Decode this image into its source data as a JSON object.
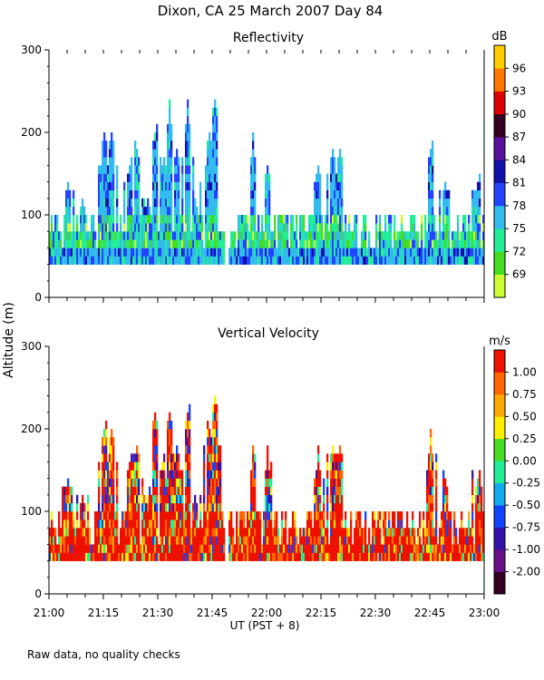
{
  "title": "Dixon, CA 25 March 2007  Day  84",
  "ylabel": "Altitude (m)",
  "xlabel": "UT  (PST + 8)",
  "footnote": "Raw data, no quality checks",
  "chart_data": [
    {
      "type": "heatmap",
      "title": "Reflectivity",
      "colorbar_unit": "dB",
      "colorbar_ticks": [
        "69",
        "72",
        "75",
        "78",
        "81",
        "84",
        "87",
        "90",
        "93",
        "96"
      ],
      "colors": [
        "#ccff33",
        "#44dd22",
        "#22ee99",
        "#33bbee",
        "#2244ff",
        "#1111aa",
        "#551199",
        "#330022",
        "#dd0000",
        "#ff7700",
        "#ffcc00"
      ],
      "ylim": [
        0,
        300
      ],
      "yticks": [
        "0",
        "100",
        "200",
        "300"
      ],
      "x_range_minutes": [
        0,
        120
      ],
      "data_floor_m": 40,
      "gap_minutes": [
        48.3,
        49.2
      ],
      "peaks": [
        [
          5,
          140
        ],
        [
          9,
          120
        ],
        [
          15,
          200
        ],
        [
          17,
          200
        ],
        [
          22,
          160
        ],
        [
          24,
          180
        ],
        [
          27,
          120
        ],
        [
          29,
          200
        ],
        [
          31,
          160
        ],
        [
          33,
          220
        ],
        [
          35,
          180
        ],
        [
          38,
          220
        ],
        [
          40,
          120
        ],
        [
          44,
          200
        ],
        [
          45.5,
          240
        ],
        [
          56,
          180
        ],
        [
          60,
          160
        ],
        [
          74,
          160
        ],
        [
          78,
          180
        ],
        [
          80,
          180
        ],
        [
          105,
          180
        ],
        [
          109,
          140
        ],
        [
          118,
          140
        ]
      ],
      "dominant": "mixed"
    },
    {
      "type": "heatmap",
      "title": "Vertical Velocity",
      "colorbar_unit": "m/s",
      "colorbar_ticks": [
        "-2.00",
        "-1.00",
        "-0.75",
        "-0.50",
        "-0.25",
        "0.00",
        "0.25",
        "0.50",
        "0.75",
        "1.00"
      ],
      "colors": [
        "#330022",
        "#661188",
        "#3311aa",
        "#1144ff",
        "#11aaee",
        "#22ee99",
        "#44dd22",
        "#ffee00",
        "#ffaa00",
        "#ff6600",
        "#ee1100"
      ],
      "ylim": [
        0,
        300
      ],
      "yticks": [
        "0",
        "100",
        "200",
        "300"
      ],
      "x_range_minutes": [
        0,
        120
      ],
      "data_floor_m": 40,
      "gap_minutes": [
        48.3,
        49.2
      ],
      "peaks": [
        [
          5,
          140
        ],
        [
          9,
          120
        ],
        [
          15,
          200
        ],
        [
          17,
          200
        ],
        [
          22,
          160
        ],
        [
          24,
          180
        ],
        [
          27,
          120
        ],
        [
          29,
          220
        ],
        [
          31,
          160
        ],
        [
          33,
          220
        ],
        [
          35,
          180
        ],
        [
          38,
          220
        ],
        [
          40,
          120
        ],
        [
          44,
          200
        ],
        [
          45.5,
          240
        ],
        [
          56,
          160
        ],
        [
          60,
          160
        ],
        [
          74,
          160
        ],
        [
          78,
          180
        ],
        [
          80,
          180
        ],
        [
          105,
          180
        ],
        [
          109,
          140
        ],
        [
          118,
          140
        ]
      ],
      "dominant": "red"
    }
  ],
  "xticks": [
    {
      "minute": 0,
      "label": "21:00"
    },
    {
      "minute": 15,
      "label": "21:15"
    },
    {
      "minute": 30,
      "label": "21:30"
    },
    {
      "minute": 45,
      "label": "21:45"
    },
    {
      "minute": 60,
      "label": "22:00"
    },
    {
      "minute": 75,
      "label": "22:15"
    },
    {
      "minute": 90,
      "label": "22:30"
    },
    {
      "minute": 105,
      "label": "22:45"
    },
    {
      "minute": 120,
      "label": "23:00"
    }
  ]
}
